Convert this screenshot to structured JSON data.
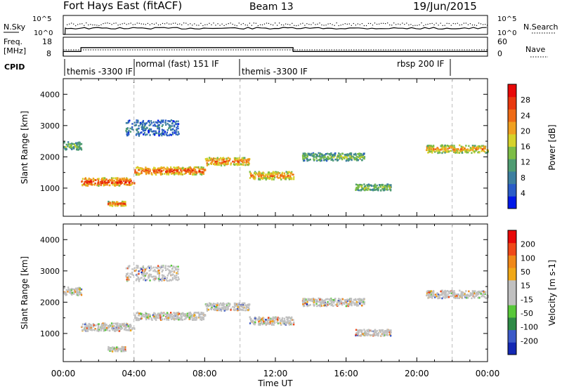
{
  "header": {
    "station": "Fort Hays East (fitACF)",
    "beam": "Beam 13",
    "date": "19/Jun/2015"
  },
  "top_panels": {
    "nsky_label": "N.Sky",
    "nsearch_label": "N.Search",
    "nsky_ticks": [
      "10^5",
      "10^0"
    ],
    "nsearch_ticks": [
      "10^5",
      "10^0"
    ],
    "freq_label_1": "Freq.",
    "freq_label_2": "[MHz]",
    "freq_ticks": [
      "18",
      "8"
    ],
    "nave_label": "Nave",
    "nave_ticks": [
      "60",
      "0"
    ],
    "cpid_label": "CPID",
    "cpid_segments": [
      {
        "label": "themis -3300 IF"
      },
      {
        "label": "normal (fast) 151 IF"
      },
      {
        "label": "themis -3300 IF"
      },
      {
        "label": "rbsp 200 IF"
      }
    ],
    "freq_series": {
      "hours": [
        0,
        1,
        1,
        13,
        13,
        24
      ],
      "mhz": [
        10.5,
        10.5,
        12.5,
        12.5,
        10.5,
        10.5
      ]
    }
  },
  "chart_data": [
    {
      "type": "heatmap",
      "name": "power",
      "ylabel": "Slant Range [km]",
      "xlabel": "Time UT",
      "xlim": [
        0,
        24
      ],
      "ylim": [
        100,
        4500
      ],
      "x_ticks": [
        "00:00",
        "04:00",
        "08:00",
        "12:00",
        "16:00",
        "20:00",
        "00:00"
      ],
      "y_ticks": [
        "1000",
        "2000",
        "3000",
        "4000"
      ],
      "colorbar": {
        "label": "Power [dB]",
        "ticks": [
          "28",
          "24",
          "20",
          "16",
          "12",
          "8",
          "4"
        ],
        "colors": [
          "#0018e8",
          "#2a5cc8",
          "#3d7fa0",
          "#4f9c72",
          "#7dbd46",
          "#d6d22a",
          "#f0a020",
          "#ee6a16",
          "#e8380e",
          "#e80808"
        ]
      },
      "bands": [
        {
          "t0": 0.0,
          "t1": 1.0,
          "r0": 2250,
          "r1": 2500,
          "level": 0.45
        },
        {
          "t0": 1.0,
          "t1": 4.0,
          "r0": 1100,
          "r1": 1350,
          "level": 0.9
        },
        {
          "t0": 4.0,
          "t1": 8.0,
          "r0": 1450,
          "r1": 1700,
          "level": 0.85
        },
        {
          "t0": 8.0,
          "t1": 10.5,
          "r0": 1750,
          "r1": 2000,
          "level": 0.8
        },
        {
          "t0": 10.5,
          "t1": 13.0,
          "r0": 1300,
          "r1": 1550,
          "level": 0.75
        },
        {
          "t0": 13.5,
          "t1": 17.0,
          "r0": 1900,
          "r1": 2150,
          "level": 0.45
        },
        {
          "t0": 16.5,
          "t1": 18.5,
          "r0": 950,
          "r1": 1150,
          "level": 0.5
        },
        {
          "t0": 20.5,
          "t1": 24.0,
          "r0": 2150,
          "r1": 2400,
          "level": 0.7
        },
        {
          "t0": 2.5,
          "t1": 3.5,
          "r0": 450,
          "r1": 600,
          "level": 0.8
        },
        {
          "t0": 3.5,
          "t1": 6.5,
          "r0": 2700,
          "r1": 3200,
          "level": 0.25
        }
      ]
    },
    {
      "type": "heatmap",
      "name": "velocity",
      "ylabel": "Slant Range [km]",
      "xlabel": "Time UT",
      "xlim": [
        0,
        24
      ],
      "ylim": [
        100,
        4500
      ],
      "x_ticks": [
        "00:00",
        "04:00",
        "08:00",
        "12:00",
        "16:00",
        "20:00",
        "00:00"
      ],
      "y_ticks": [
        "1000",
        "2000",
        "3000",
        "4000"
      ],
      "colorbar": {
        "label": "Velocity [m s-1]",
        "ticks": [
          "200",
          "100",
          "50",
          "15",
          "-15",
          "-50",
          "-100",
          "-200"
        ],
        "colors": [
          "#1428b4",
          "#3c5ac8",
          "#2e8a46",
          "#58c83a",
          "#c0c0c0",
          "#c0c0c0",
          "#f0a818",
          "#f08818",
          "#f04818",
          "#e80808"
        ]
      }
    }
  ]
}
